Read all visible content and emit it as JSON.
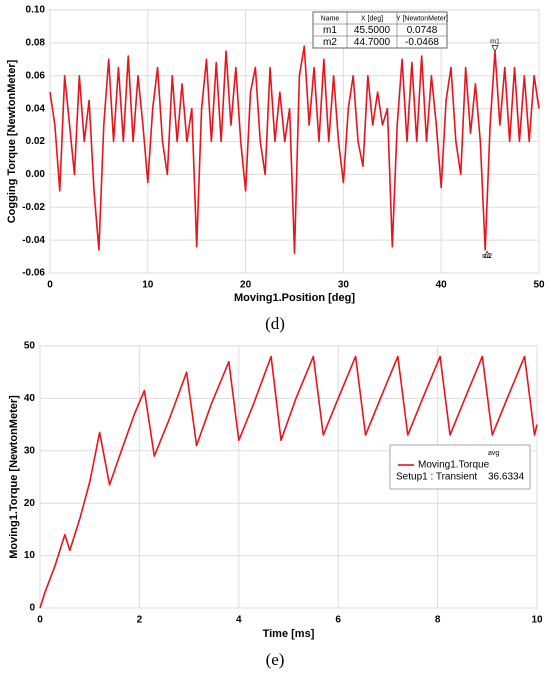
{
  "chart_data": [
    {
      "type": "line",
      "caption": "(d)",
      "xlabel": "Moving1.Position [deg]",
      "ylabel": "Cogging Torque [NewtonMeter]",
      "x": [
        0,
        0.5,
        1,
        1.5,
        2,
        2.5,
        3,
        3.5,
        4,
        4.5,
        5,
        5.5,
        6,
        6.5,
        7,
        7.5,
        8,
        8.5,
        9,
        9.5,
        10,
        10.5,
        11,
        11.5,
        12,
        12.5,
        13,
        13.5,
        14,
        14.5,
        15,
        15.5,
        16,
        16.5,
        17,
        17.5,
        18,
        18.5,
        19,
        19.5,
        20,
        20.5,
        21,
        21.5,
        22,
        22.5,
        23,
        23.5,
        24,
        24.5,
        25,
        25.5,
        26,
        26.5,
        27,
        27.5,
        28,
        28.5,
        29,
        29.5,
        30,
        30.5,
        31,
        31.5,
        32,
        32.5,
        33,
        33.5,
        34,
        34.5,
        35,
        35.5,
        36,
        36.5,
        37,
        37.5,
        38,
        38.5,
        39,
        39.5,
        40,
        40.5,
        41,
        41.5,
        42,
        42.5,
        43,
        43.5,
        44,
        44.5,
        45,
        45.5,
        46,
        46.5,
        47,
        47.5,
        48,
        48.5,
        49,
        49.5,
        50
      ],
      "series": [
        {
          "name": "Cogging Torque",
          "color": "#e8141c",
          "values": [
            0.05,
            0.03,
            -0.01,
            0.06,
            0.03,
            0.0,
            0.06,
            0.02,
            0.045,
            -0.01,
            -0.046,
            0.03,
            0.07,
            0.02,
            0.065,
            0.02,
            0.072,
            0.02,
            0.06,
            0.03,
            -0.005,
            0.04,
            0.065,
            0.02,
            0.0,
            0.06,
            0.02,
            0.055,
            0.02,
            0.04,
            -0.044,
            0.04,
            0.07,
            0.02,
            0.068,
            0.02,
            0.075,
            0.03,
            0.065,
            0.02,
            -0.01,
            0.05,
            0.065,
            0.02,
            0.0,
            0.065,
            0.02,
            0.05,
            0.02,
            0.04,
            -0.048,
            0.06,
            0.078,
            0.03,
            0.065,
            0.02,
            0.07,
            0.02,
            0.06,
            0.02,
            -0.005,
            0.04,
            0.06,
            0.02,
            0.005,
            0.06,
            0.03,
            0.05,
            0.03,
            0.04,
            -0.044,
            0.03,
            0.07,
            0.02,
            0.068,
            0.02,
            0.072,
            0.02,
            0.06,
            0.03,
            -0.008,
            0.045,
            0.065,
            0.02,
            0.0,
            0.065,
            0.025,
            0.055,
            0.02,
            -0.046,
            0.03,
            0.0748,
            0.03,
            0.065,
            0.02,
            0.065,
            0.02,
            0.06,
            0.02,
            0.06,
            0.04
          ]
        }
      ],
      "xlim": [
        0,
        50
      ],
      "xticks": [
        0,
        10,
        20,
        30,
        40,
        50
      ],
      "ylim": [
        -0.06,
        0.1
      ],
      "yticks": [
        {
          "value": 0.1,
          "label": "0.10"
        },
        0.08,
        0.06,
        0.04,
        0.02,
        {
          "value": 0,
          "label": "0.00"
        },
        -0.02,
        -0.04,
        -0.06
      ],
      "grid": true,
      "markers": [
        {
          "name": "m1",
          "x": 45.5,
          "y": 0.0748
        },
        {
          "name": "m2",
          "x": 44.7,
          "y": -0.0468
        }
      ],
      "marker_table": {
        "header": [
          "Name",
          "X [deg]",
          "Y [NewtonMeter]"
        ],
        "rows": [
          [
            "m1",
            "45.5000",
            "0.0748"
          ],
          [
            "m2",
            "44.7000",
            "-0.0468"
          ]
        ]
      }
    },
    {
      "type": "line",
      "caption": "(e)",
      "xlabel": "Time [ms]",
      "ylabel": "Moving1.Torque [NewtonMeter]",
      "x": [
        0,
        0.1,
        0.3,
        0.4,
        0.5,
        0.6,
        0.8,
        1.0,
        1.2,
        1.4,
        1.6,
        1.9,
        2.1,
        2.3,
        2.6,
        2.95,
        3.15,
        3.45,
        3.8,
        4.0,
        4.3,
        4.65,
        4.85,
        5.15,
        5.5,
        5.7,
        6.0,
        6.35,
        6.55,
        6.85,
        7.2,
        7.4,
        7.7,
        8.05,
        8.25,
        8.55,
        8.9,
        9.1,
        9.4,
        9.75,
        9.95,
        10
      ],
      "series": [
        {
          "name": "Moving1.Torque",
          "color": "#e8141c",
          "values": [
            0,
            3,
            8,
            11,
            14,
            11,
            17,
            24,
            33.5,
            23.5,
            29,
            37,
            41.5,
            29,
            36,
            45,
            31,
            39,
            47,
            32,
            39,
            48,
            32,
            40,
            48,
            33,
            40,
            48,
            33,
            40,
            48,
            33,
            40,
            48,
            33,
            40,
            48,
            33,
            40,
            48,
            33,
            35
          ]
        }
      ],
      "legend_header": "avg",
      "legend_setup": "Setup1 : Transient",
      "legend_avg": "36.6334",
      "xlim": [
        0,
        10
      ],
      "xticks": [
        0,
        2,
        4,
        6,
        8,
        10
      ],
      "ylim": [
        0,
        50
      ],
      "yticks": [
        0,
        10,
        20,
        30,
        40,
        50
      ],
      "grid": true
    }
  ]
}
